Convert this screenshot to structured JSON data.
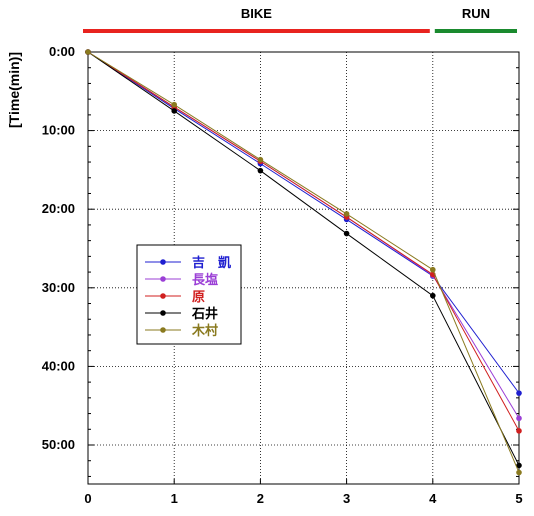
{
  "chart_data": {
    "type": "line",
    "ylabel": "[Time(min)]",
    "xlabel": "",
    "x": [
      0,
      1,
      2,
      3,
      4,
      5
    ],
    "x_tick_labels": [
      "0",
      "1",
      "2",
      "3",
      "4",
      "5"
    ],
    "xlim": [
      0,
      5
    ],
    "ylim": [
      0,
      55
    ],
    "y_inverted": true,
    "y_tick_values": [
      0,
      10,
      20,
      30,
      40,
      50
    ],
    "y_tick_labels": [
      "0:00",
      "10:00",
      "20:00",
      "30:00",
      "40:00",
      "50:00"
    ],
    "grid": true,
    "legend_placement": "left-center",
    "phases": [
      {
        "label": "BIKE",
        "from": 0,
        "to": 4,
        "color": "#e8231f"
      },
      {
        "label": "RUN",
        "from": 4,
        "to": 5,
        "color": "#1a8a2e"
      }
    ],
    "series": [
      {
        "name": "吉　凱",
        "color": "#1f1fd0",
        "values": [
          0,
          7.2,
          14.2,
          21.3,
          28.5,
          43.4
        ]
      },
      {
        "name": "長塩",
        "color": "#9b3fd6",
        "values": [
          0,
          7.0,
          13.9,
          21.0,
          28.4,
          46.6
        ]
      },
      {
        "name": "原",
        "color": "#d01f1f",
        "values": [
          0,
          7.0,
          13.9,
          21.0,
          28.3,
          48.2
        ]
      },
      {
        "name": "石井",
        "color": "#000000",
        "values": [
          0,
          7.5,
          15.1,
          23.1,
          31.0,
          52.6
        ]
      },
      {
        "name": "木村",
        "color": "#8a7a1f",
        "values": [
          0,
          6.7,
          13.7,
          20.6,
          27.7,
          53.5
        ]
      }
    ]
  }
}
